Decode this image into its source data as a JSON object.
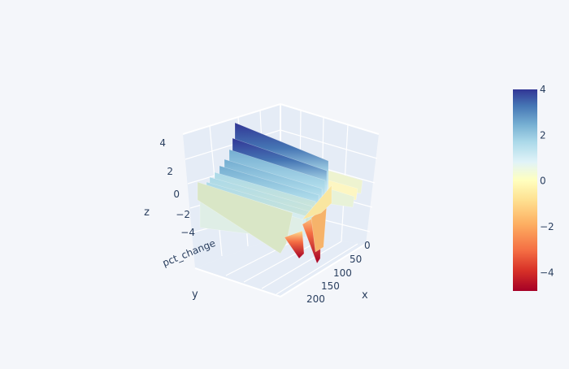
{
  "chart_data": {
    "type": "surface",
    "title": "",
    "axes": {
      "x": {
        "label": "x",
        "ticks": [
          "0",
          "50",
          "100",
          "150",
          "200"
        ]
      },
      "y": {
        "label": "y",
        "ticks": [
          "pct_change"
        ]
      },
      "z": {
        "label": "z",
        "ticks": [
          "4",
          "2",
          "0",
          "−2",
          "−4"
        ],
        "range": [
          -4.5,
          4.5
        ]
      }
    },
    "colorbar": {
      "colorscale": "RdYlBu",
      "range": [
        -4.8,
        4
      ],
      "ticks": [
        "4",
        "2",
        "0",
        "−2",
        "−4"
      ],
      "tick_values": [
        4,
        2,
        0,
        -2,
        -4
      ]
    },
    "grid": true,
    "background": "#f4f6fa",
    "scene_background": "#e5ecf6",
    "colors": [
      "#a50026",
      "#d73027",
      "#f46d43",
      "#fdae61",
      "#fee090",
      "#ffffbf",
      "#e0f3f8",
      "#abd9e9",
      "#74add1",
      "#4575b4",
      "#313695"
    ],
    "fins_description_values": [
      4.2,
      3.0,
      2.4,
      1.8,
      1.4,
      1.0,
      0.7,
      0.5,
      0.3,
      0.2,
      0.1,
      -0.1,
      -0.2
    ]
  }
}
